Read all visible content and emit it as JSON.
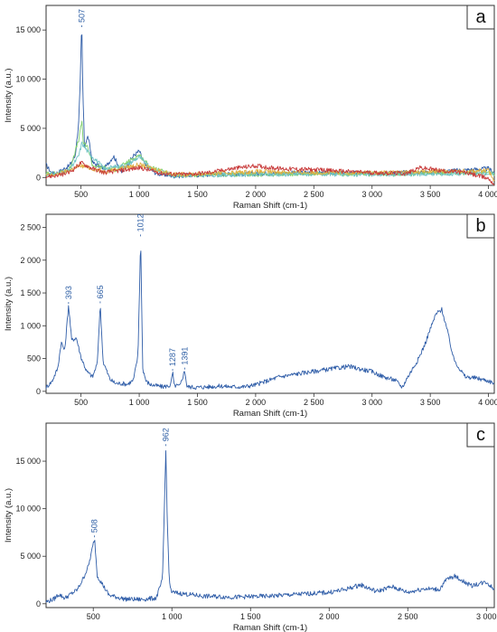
{
  "chart_data": [
    {
      "type": "line",
      "panel_label": "a",
      "xlabel": "Raman Shift (cm-1)",
      "ylabel": "Intensity (a.u.)",
      "xlim": [
        200,
        4050
      ],
      "ylim": [
        -800,
        17500
      ],
      "xticks": [
        500,
        1000,
        1500,
        2000,
        2500,
        3000,
        3500,
        4000
      ],
      "xtick_labels": [
        "500",
        "1 000",
        "1 500",
        "2 000",
        "2 500",
        "3 000",
        "3 500",
        "4 000"
      ],
      "yticks": [
        0,
        5000,
        10000,
        15000
      ],
      "ytick_labels": [
        "0",
        "5 000",
        "10 000",
        "15 000"
      ],
      "peak_labels": [
        {
          "x": 507,
          "y": 15200,
          "text": "507"
        }
      ],
      "series": [
        {
          "color": "#2f5da8",
          "x": [
            200,
            250,
            300,
            400,
            450,
            480,
            495,
            500,
            507,
            515,
            530,
            560,
            600,
            700,
            780,
            850,
            950,
            1000,
            1050,
            1150,
            1300,
            1500,
            2000,
            2500,
            3000,
            3500,
            4000,
            4050
          ],
          "y": [
            1300,
            400,
            500,
            1200,
            2200,
            5500,
            10200,
            13800,
            15200,
            9000,
            3200,
            4200,
            1500,
            900,
            2200,
            500,
            2200,
            2700,
            1200,
            400,
            150,
            250,
            400,
            500,
            450,
            550,
            900,
            500
          ]
        },
        {
          "color": "#7fd06a",
          "x": [
            200,
            300,
            400,
            480,
            500,
            507,
            520,
            560,
            600,
            800,
            1000,
            1100,
            1300,
            1600,
            2000,
            2500,
            3000,
            3500,
            4000,
            4050
          ],
          "y": [
            400,
            400,
            800,
            3800,
            5200,
            5800,
            3500,
            3000,
            1200,
            800,
            2300,
            1000,
            200,
            300,
            300,
            400,
            350,
            400,
            500,
            300
          ]
        },
        {
          "color": "#6fc3c5",
          "x": [
            200,
            300,
            400,
            480,
            507,
            560,
            700,
            900,
            1000,
            1100,
            1300,
            1600,
            2000,
            2500,
            3000,
            3500,
            4000,
            4050
          ],
          "y": [
            300,
            400,
            700,
            2200,
            3500,
            2600,
            900,
            1300,
            2100,
            900,
            200,
            250,
            300,
            350,
            300,
            350,
            450,
            250
          ]
        },
        {
          "color": "#e0b040",
          "x": [
            200,
            300,
            500,
            700,
            1000,
            1300,
            1600,
            2000,
            2500,
            3000,
            3500,
            4000,
            4050
          ],
          "y": [
            200,
            300,
            1200,
            600,
            1300,
            300,
            400,
            600,
            500,
            500,
            600,
            700,
            -300
          ]
        },
        {
          "color": "#c83a3a",
          "x": [
            200,
            300,
            400,
            500,
            600,
            700,
            900,
            1000,
            1200,
            1400,
            1600,
            1800,
            2000,
            2200,
            2500,
            2800,
            3000,
            3300,
            3400,
            3600,
            3800,
            4000,
            4050
          ],
          "y": [
            100,
            200,
            500,
            1500,
            900,
            500,
            800,
            1000,
            400,
            300,
            500,
            900,
            1200,
            900,
            800,
            600,
            500,
            400,
            1000,
            700,
            500,
            -100,
            -700
          ]
        }
      ]
    },
    {
      "type": "line",
      "panel_label": "b",
      "xlabel": "Raman Shift (cm-1)",
      "ylabel": "Intensity (a.u.)",
      "xlim": [
        200,
        4050
      ],
      "ylim": [
        -30,
        2700
      ],
      "xticks": [
        500,
        1000,
        1500,
        2000,
        2500,
        3000,
        3500,
        4000
      ],
      "xtick_labels": [
        "500",
        "1 000",
        "1 500",
        "2 000",
        "2 500",
        "3 000",
        "3 500",
        "4 000"
      ],
      "yticks": [
        0,
        500,
        1000,
        1500,
        2000,
        2500
      ],
      "ytick_labels": [
        "0",
        "500",
        "1 000",
        "1 500",
        "2 000",
        "2 500"
      ],
      "peak_labels": [
        {
          "x": 393,
          "y": 1320,
          "text": "393"
        },
        {
          "x": 665,
          "y": 1330,
          "text": "665"
        },
        {
          "x": 1012,
          "y": 2350,
          "text": "1012"
        },
        {
          "x": 1287,
          "y": 300,
          "text": "1287"
        },
        {
          "x": 1391,
          "y": 320,
          "text": "1391"
        }
      ],
      "series": [
        {
          "color": "#2f5da8",
          "x": [
            200,
            250,
            300,
            330,
            360,
            393,
            420,
            460,
            500,
            550,
            600,
            640,
            665,
            690,
            750,
            800,
            850,
            900,
            950,
            990,
            1012,
            1030,
            1060,
            1100,
            1200,
            1270,
            1287,
            1300,
            1350,
            1391,
            1410,
            1500,
            1600,
            1700,
            1800,
            1900,
            2000,
            2200,
            2400,
            2600,
            2800,
            3000,
            3100,
            3200,
            3260,
            3300,
            3350,
            3400,
            3450,
            3500,
            3550,
            3600,
            3650,
            3700,
            3750,
            3800,
            3900,
            4000,
            4050
          ],
          "y": [
            60,
            150,
            350,
            750,
            620,
            1320,
            780,
            820,
            520,
            300,
            220,
            430,
            1330,
            450,
            180,
            120,
            120,
            110,
            170,
            550,
            2350,
            350,
            150,
            100,
            70,
            90,
            300,
            90,
            80,
            320,
            70,
            60,
            70,
            80,
            70,
            70,
            100,
            220,
            280,
            330,
            380,
            300,
            220,
            170,
            60,
            200,
            350,
            500,
            700,
            950,
            1180,
            1250,
            900,
            500,
            350,
            220,
            200,
            160,
            120
          ]
        }
      ]
    },
    {
      "type": "line",
      "panel_label": "c",
      "xlabel": "Raman Shift (cm-1)",
      "ylabel": "Intensity (a.u.)",
      "xlim": [
        200,
        3050
      ],
      "ylim": [
        -400,
        19000
      ],
      "xticks": [
        500,
        1000,
        1500,
        2000,
        2500,
        3000
      ],
      "xtick_labels": [
        "500",
        "1 000",
        "1 500",
        "2 000",
        "2 500",
        "3 000"
      ],
      "yticks": [
        0,
        5000,
        10000,
        15000
      ],
      "ytick_labels": [
        "0",
        "5 000",
        "10 000",
        "15 000"
      ],
      "peak_labels": [
        {
          "x": 508,
          "y": 6900,
          "text": "508"
        },
        {
          "x": 962,
          "y": 16500,
          "text": "962"
        }
      ],
      "series": [
        {
          "color": "#2f5da8",
          "x": [
            200,
            250,
            280,
            320,
            400,
            440,
            470,
            490,
            508,
            525,
            560,
            600,
            700,
            800,
            900,
            940,
            955,
            962,
            970,
            985,
            1000,
            1100,
            1200,
            1400,
            1600,
            1800,
            2000,
            2100,
            2200,
            2300,
            2400,
            2500,
            2600,
            2700,
            2750,
            2800,
            2900,
            3000,
            3050
          ],
          "y": [
            200,
            500,
            1000,
            600,
            1500,
            2800,
            4000,
            5500,
            6900,
            3000,
            2000,
            900,
            500,
            450,
            600,
            2500,
            12000,
            16500,
            9000,
            2000,
            1200,
            1000,
            800,
            700,
            800,
            1000,
            1200,
            1500,
            2000,
            1300,
            1800,
            1200,
            1600,
            1500,
            2600,
            2900,
            1900,
            2300,
            1500
          ]
        }
      ]
    }
  ]
}
